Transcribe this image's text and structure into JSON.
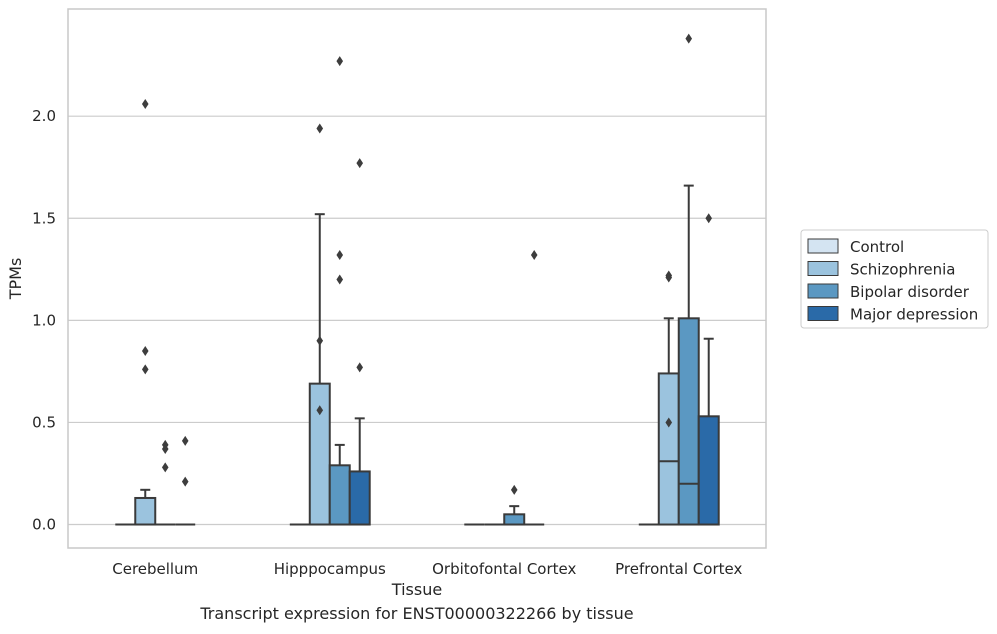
{
  "chart_data": {
    "type": "box",
    "caption": "Transcript expression for ENST00000322266 by tissue",
    "xlabel": "Tissue",
    "ylabel": "TPMs",
    "ylim": [
      -0.115,
      2.525
    ],
    "yticks": [
      0.0,
      0.5,
      1.0,
      1.5,
      2.0
    ],
    "ytick_labels": [
      "0.0",
      "0.5",
      "1.0",
      "1.5",
      "2.0"
    ],
    "grid": "horizontal",
    "legend_position": "right",
    "categories": [
      "Cerebellum",
      "Hipppocampus",
      "Orbitofontal Cortex",
      "Prefrontal Cortex"
    ],
    "series": [
      {
        "name": "Control",
        "color": "#d4e4f2",
        "boxes": [
          {
            "q1": 0,
            "median": 0,
            "q3": 0,
            "whislo": 0,
            "whishi": 0,
            "fliers": []
          },
          {
            "q1": 0,
            "median": 0,
            "q3": 0,
            "whislo": 0,
            "whishi": 0,
            "fliers": []
          },
          {
            "q1": 0,
            "median": 0,
            "q3": 0,
            "whislo": 0,
            "whishi": 0,
            "fliers": []
          },
          {
            "q1": 0,
            "median": 0,
            "q3": 0,
            "whislo": 0,
            "whishi": 0,
            "fliers": []
          }
        ]
      },
      {
        "name": "Schizophrenia",
        "color": "#9bc3de",
        "boxes": [
          {
            "q1": 0,
            "median": 0,
            "q3": 0.13,
            "whislo": 0,
            "whishi": 0.17,
            "fliers": [
              2.06,
              0.85,
              0.76
            ]
          },
          {
            "q1": 0,
            "median": 0,
            "q3": 0.69,
            "whislo": 0,
            "whishi": 1.52,
            "fliers": [
              1.94,
              0.9,
              0.56
            ]
          },
          {
            "q1": 0,
            "median": 0,
            "q3": 0,
            "whislo": 0,
            "whishi": 0,
            "fliers": []
          },
          {
            "q1": 0,
            "median": 0.31,
            "q3": 0.74,
            "whislo": 0,
            "whishi": 1.01,
            "fliers": [
              1.22,
              1.21,
              0.5
            ]
          }
        ]
      },
      {
        "name": "Bipolar disorder",
        "color": "#5b98c2",
        "boxes": [
          {
            "q1": 0,
            "median": 0,
            "q3": 0,
            "whislo": 0,
            "whishi": 0,
            "fliers": [
              0.39,
              0.37,
              0.28
            ]
          },
          {
            "q1": 0,
            "median": 0,
            "q3": 0.29,
            "whislo": 0,
            "whishi": 0.39,
            "fliers": [
              2.27,
              1.32,
              1.2
            ]
          },
          {
            "q1": 0,
            "median": 0,
            "q3": 0.05,
            "whislo": 0,
            "whishi": 0.09,
            "fliers": [
              0.17
            ]
          },
          {
            "q1": 0,
            "median": 0.2,
            "q3": 1.01,
            "whislo": 0,
            "whishi": 1.66,
            "fliers": [
              2.38
            ]
          }
        ]
      },
      {
        "name": "Major depression",
        "color": "#2a6aa8",
        "boxes": [
          {
            "q1": 0,
            "median": 0,
            "q3": 0,
            "whislo": 0,
            "whishi": 0,
            "fliers": [
              0.41,
              0.21
            ]
          },
          {
            "q1": 0,
            "median": 0,
            "q3": 0.26,
            "whislo": 0,
            "whishi": 0.52,
            "fliers": [
              1.77,
              0.77
            ]
          },
          {
            "q1": 0,
            "median": 0,
            "q3": 0,
            "whislo": 0,
            "whishi": 0,
            "fliers": [
              1.32
            ]
          },
          {
            "q1": 0,
            "median": 0,
            "q3": 0.53,
            "whislo": 0,
            "whishi": 0.91,
            "fliers": [
              1.5
            ]
          }
        ]
      }
    ]
  }
}
